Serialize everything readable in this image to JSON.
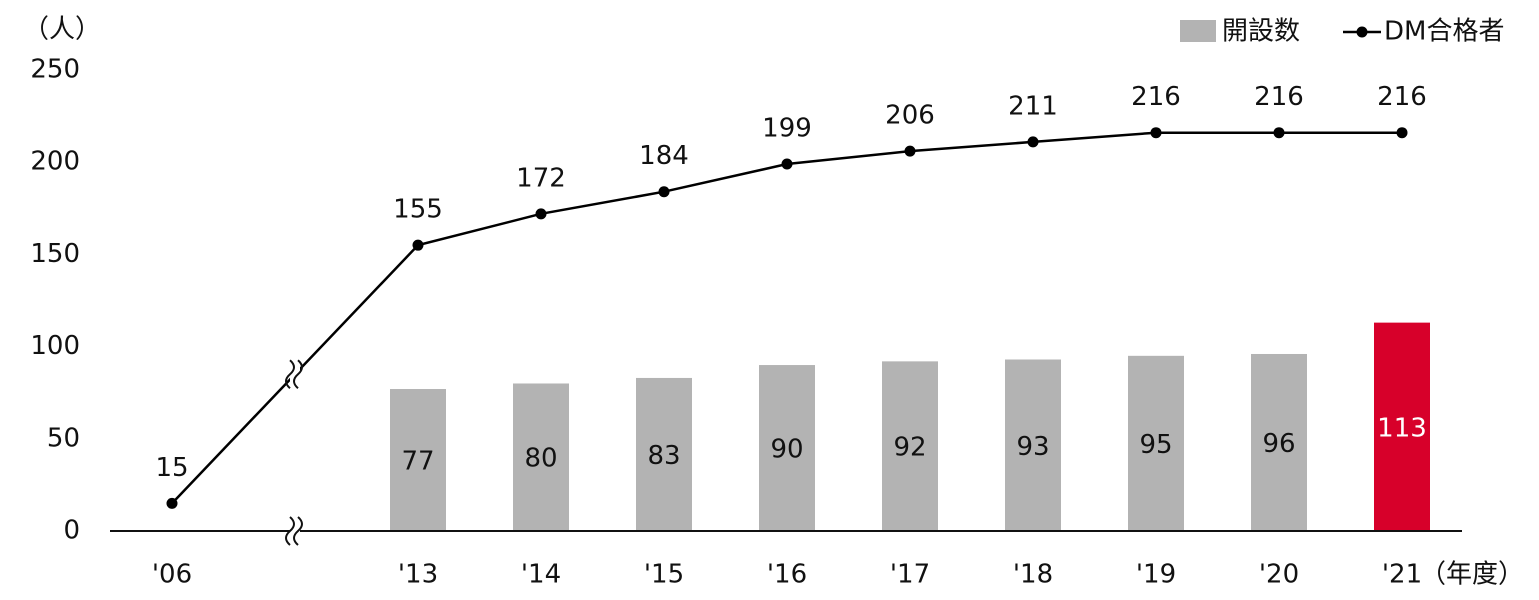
{
  "chart_data": {
    "type": "bar+line",
    "y_label": "（人）",
    "x_label": "（年度）",
    "categories": [
      "'06",
      "'13",
      "'14",
      "'15",
      "'16",
      "'17",
      "'18",
      "'19",
      "'20",
      "'21"
    ],
    "series": [
      {
        "name": "開設数",
        "type": "bar",
        "color": "#b3b3b3",
        "colors": [
          null,
          "#b3b3b3",
          "#b3b3b3",
          "#b3b3b3",
          "#b3b3b3",
          "#b3b3b3",
          "#b3b3b3",
          "#b3b3b3",
          "#b3b3b3",
          "#d7002a"
        ],
        "values": [
          null,
          77,
          80,
          83,
          90,
          92,
          93,
          95,
          96,
          113
        ]
      },
      {
        "name": "DM合格者",
        "type": "line",
        "color": "#000000",
        "values": [
          15,
          155,
          172,
          184,
          199,
          206,
          211,
          216,
          216,
          216
        ]
      }
    ],
    "ylim": [
      0,
      250
    ],
    "yticks": [
      0,
      50,
      100,
      150,
      200,
      250
    ],
    "grid": false,
    "legend": "top-right"
  }
}
